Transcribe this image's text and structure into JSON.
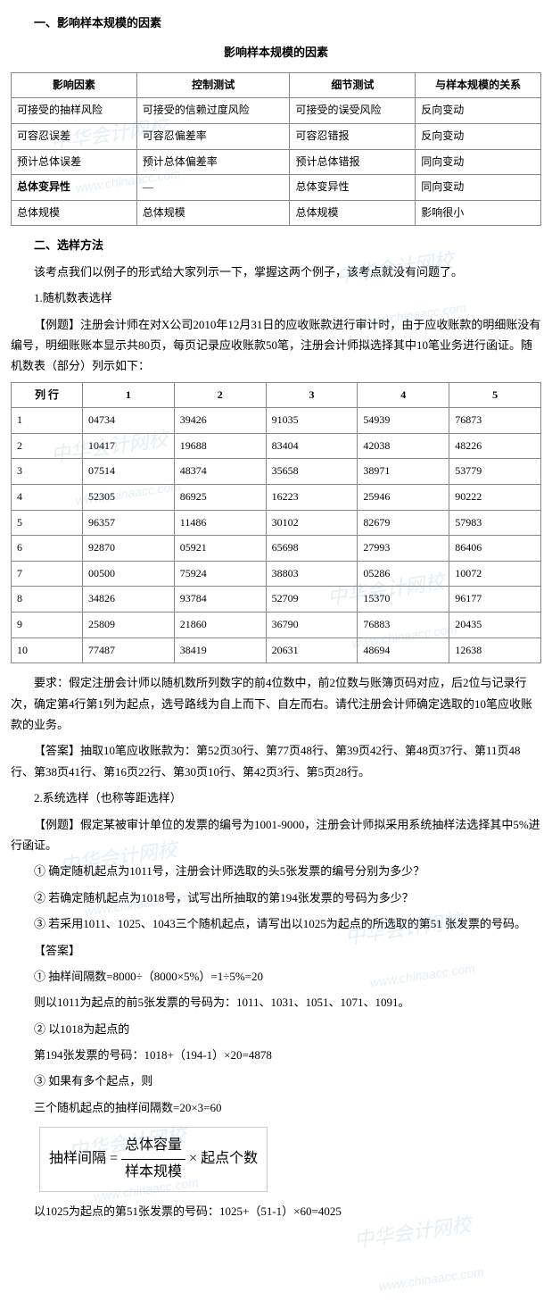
{
  "section1": {
    "heading": "一、影响样本规模的因素",
    "tableTitle": "影响样本规模的因素",
    "table": {
      "headers": [
        "影响因素",
        "控制测试",
        "细节测试",
        "与样本规模的关系"
      ],
      "rows": [
        [
          "可接受的抽样风险",
          "可接受的信赖过度风险",
          "可接受的误受风险",
          "反向变动"
        ],
        [
          "可容忍误差",
          "可容忍偏差率",
          "可容忍错报",
          "反向变动"
        ],
        [
          "预计总体误差",
          "预计总体偏差率",
          "预计总体错报",
          "同向变动"
        ],
        [
          "总体变异性",
          "—",
          "总体变异性",
          "同向变动"
        ],
        [
          "总体规模",
          "总体规模",
          "总体规模",
          "影响很小"
        ]
      ],
      "boldRowIndex": 3
    }
  },
  "section2": {
    "heading": "二、选样方法",
    "intro": "该考点我们以例子的形式给大家列示一下，掌握这两个例子，该考点就没有问题了。",
    "sub1_title": "1.随机数表选样",
    "example1_label": "【例题】",
    "example1_body": "注册会计师在对X公司2010年12月31日的应收账款进行审计时，由于应收账款的明细账没有编号，明细账账本显示共80页，每页记录应收账款50笔，注册会计师拟选择其中10笔业务进行函证。随机数表（部分）列示如下：",
    "table2": {
      "corner": "列  行",
      "cols": [
        "1",
        "2",
        "3",
        "4",
        "5"
      ],
      "rows": [
        [
          "1",
          "04734",
          "39426",
          "91035",
          "54939",
          "76873"
        ],
        [
          "2",
          "10417",
          "19688",
          "83404",
          "42038",
          "48226"
        ],
        [
          "3",
          "07514",
          "48374",
          "35658",
          "38971",
          "53779"
        ],
        [
          "4",
          "52305",
          "86925",
          "16223",
          "25946",
          "90222"
        ],
        [
          "5",
          "96357",
          "11486",
          "30102",
          "82679",
          "57983"
        ],
        [
          "6",
          "92870",
          "05921",
          "65698",
          "27993",
          "86406"
        ],
        [
          "7",
          "00500",
          "75924",
          "38803",
          "05286",
          "10072"
        ],
        [
          "8",
          "34826",
          "93784",
          "52709",
          "15370",
          "96177"
        ],
        [
          "9",
          "25809",
          "21860",
          "36790",
          "76883",
          "20435"
        ],
        [
          "10",
          "77487",
          "38419",
          "20631",
          "48694",
          "12638"
        ]
      ]
    },
    "req": "要求：假定注册会计师以随机数所列数字的前4位数中，前2位数与账簿页码对应，后2位与记录行次，确定第4行第1列为起点，选号路线为自上而下、自左而右。请代注册会计师确定选取的10笔应收账款的业务。",
    "answer1_label": "【答案】",
    "answer1_body": "抽取10笔应收账款为：第52页30行、第77页48行、第39页42行、第48页37行、第11页48行、第38页41行、第16页22行、第30页10行、第42页3行、第5页28行。",
    "sub2_title": "2.系统选样（也称等距选样）",
    "example2_body": "假定某被审计单位的发票的编号为1001-9000，注册会计师拟采用系统抽样法选择其中5%进行函证。",
    "q1": "① 确定随机起点为1011号，注册会计师选取的头5张发票的编号分别为多少？",
    "q2": "② 若确定随机起点为1018号，试写出所抽取的第194张发票的号码为多少？",
    "q3": "③ 若采用1011、1025、1043三个随机起点，请写出以1025为起点的所选取的第51  张发票的号码。",
    "answer2_label": "【答案】",
    "a1a": "① 抽样间隔数=8000÷（8000×5%）=1÷5%=20",
    "a1b": "则以1011为起点的前5张发票的号码为：1011、1031、1051、1071、1091。",
    "a2a": "② 以1018为起点的",
    "a2b": "第194张发票的号码：1018+（194-1）×20=4878",
    "a3a": "③ 如果有多个起点，则",
    "a3b": "三个随机起点的抽样间隔数=20×3=60",
    "formula": {
      "lhs": "抽样间隔 =",
      "num": "总体容量",
      "den": "样本规模",
      "rhs": "× 起点个数"
    },
    "a3c": "以1025为起点的第51张发票的号码：1025+（51-1）×60=4025"
  },
  "watermark": {
    "line1": "中华会计网校",
    "line2": "www.chinaacc.com"
  }
}
